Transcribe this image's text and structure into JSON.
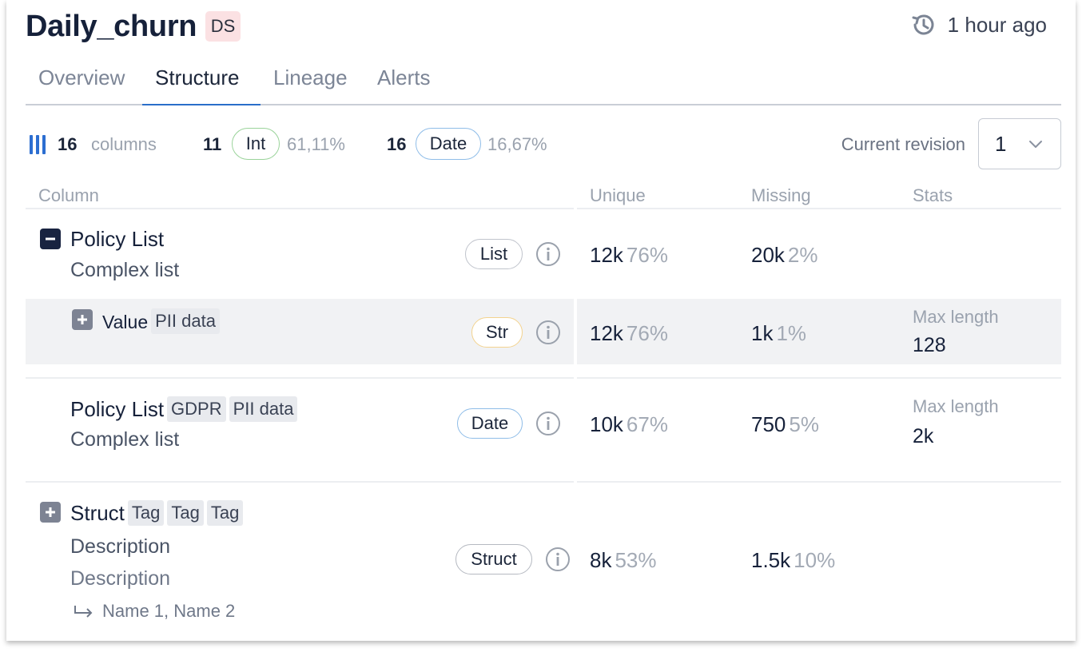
{
  "header": {
    "title": "Daily_churn",
    "badge": "DS",
    "updated": "1 hour ago"
  },
  "tabs": [
    {
      "label": "Overview"
    },
    {
      "label": "Structure",
      "active": true
    },
    {
      "label": "Lineage"
    },
    {
      "label": "Alerts"
    }
  ],
  "summary": {
    "columns_count": "16",
    "columns_label": "columns",
    "int_count": "11",
    "int_label": "Int",
    "int_pct": "61,11%",
    "date_count": "16",
    "date_label": "Date",
    "date_pct": "16,67%",
    "revision_label": "Current revision",
    "revision_value": "1"
  },
  "table": {
    "headers": {
      "column": "Column",
      "unique": "Unique",
      "missing": "Missing",
      "stats": "Stats"
    },
    "rows": [
      {
        "name": "Policy List",
        "description": "Complex list",
        "type": "List",
        "unique": "12k",
        "unique_pct": "76%",
        "missing": "20k",
        "missing_pct": "2%"
      },
      {
        "name": "Value",
        "tags": [
          "PII data"
        ],
        "type": "Str",
        "unique": "12k",
        "unique_pct": "76%",
        "missing": "1k",
        "missing_pct": "1%",
        "stat_label": "Max length",
        "stat_value": "128"
      },
      {
        "name": "Policy List",
        "tags": [
          "GDPR",
          "PII data"
        ],
        "description": "Complex list",
        "type": "Date",
        "unique": "10k",
        "unique_pct": "67%",
        "missing": "750",
        "missing_pct": "5%",
        "stat_label": "Max length",
        "stat_value": "2k"
      },
      {
        "name": "Struct",
        "tags": [
          "Tag",
          "Tag",
          "Tag"
        ],
        "description": "Description",
        "description2": "Description",
        "references": "Name 1, Name 2",
        "type": "Struct",
        "unique": "8k",
        "unique_pct": "53%",
        "missing": "1.5k",
        "missing_pct": "10%"
      }
    ]
  },
  "icons": {
    "history": "history-clock-icon",
    "columns": "columns-icon",
    "collapse": "minus-square-icon",
    "expand": "plus-square-icon",
    "info": "info-circle-icon",
    "chevron": "chevron-down-icon",
    "reference": "arrow-return-icon"
  },
  "colors": {
    "accent": "#2a6ec9",
    "int_border": "#9ad39a",
    "date_border": "#8fbde8",
    "str_border": "#f3d38f",
    "ds_badge": "#fbe1e3"
  }
}
